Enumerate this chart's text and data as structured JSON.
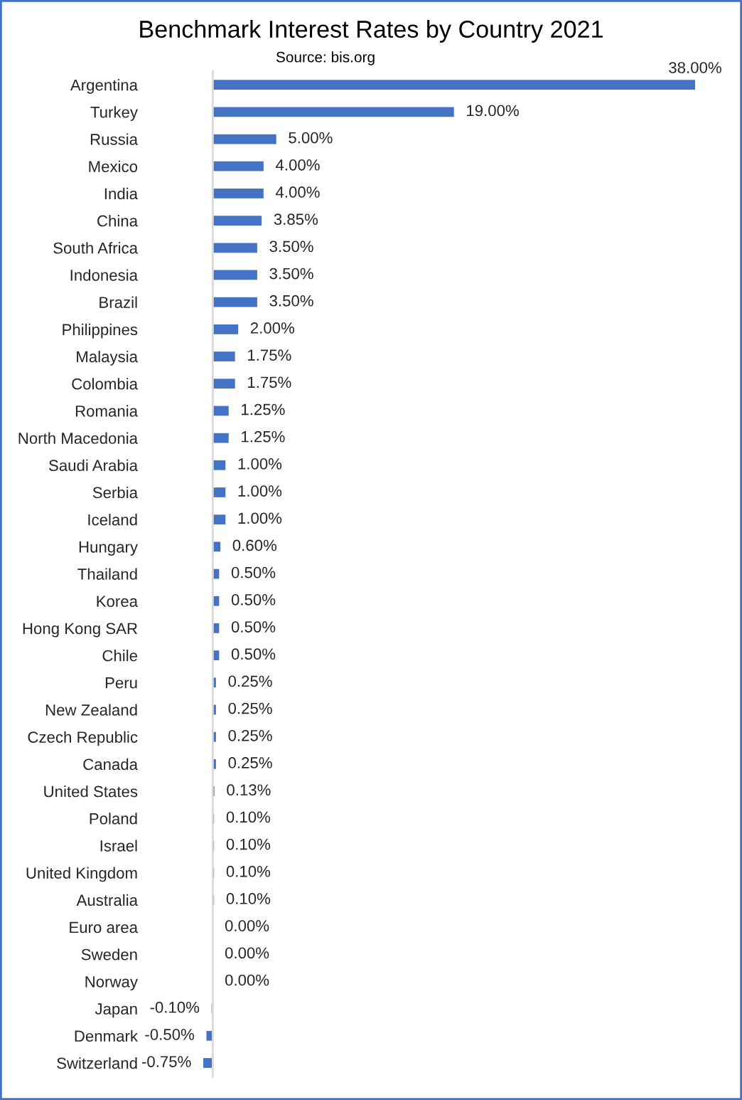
{
  "chart_data": {
    "type": "bar",
    "orientation": "horizontal",
    "title": "Benchmark Interest Rates by Country 2021",
    "subtitle": "Source: bis.org",
    "categories": [
      "Argentina",
      "Turkey",
      "Russia",
      "Mexico",
      "India",
      "China",
      "South Africa",
      "Indonesia",
      "Brazil",
      "Philippines",
      "Malaysia",
      "Colombia",
      "Romania",
      "North Macedonia",
      "Saudi Arabia",
      "Serbia",
      "Iceland",
      "Hungary",
      "Thailand",
      "Korea",
      "Hong Kong SAR",
      "Chile",
      "Peru",
      "New Zealand",
      "Czech Republic",
      "Canada",
      "United States",
      "Poland",
      "Israel",
      "United Kingdom",
      "Australia",
      "Euro area",
      "Sweden",
      "Norway",
      "Japan",
      "Denmark",
      "Switzerland"
    ],
    "values": [
      38,
      19,
      5,
      4,
      4,
      3.85,
      3.5,
      3.5,
      3.5,
      2,
      1.75,
      1.75,
      1.25,
      1.25,
      1,
      1,
      1,
      0.6,
      0.5,
      0.5,
      0.5,
      0.5,
      0.25,
      0.25,
      0.25,
      0.25,
      0.13,
      0.1,
      0.1,
      0.1,
      0.1,
      0,
      0,
      0,
      -0.1,
      -0.5,
      -0.75
    ],
    "value_labels": [
      "38.00%",
      "19.00%",
      "5.00%",
      "4.00%",
      "4.00%",
      "3.85%",
      "3.50%",
      "3.50%",
      "3.50%",
      "2.00%",
      "1.75%",
      "1.75%",
      "1.25%",
      "1.25%",
      "1.00%",
      "1.00%",
      "1.00%",
      "0.60%",
      "0.50%",
      "0.50%",
      "0.50%",
      "0.50%",
      "0.25%",
      "0.25%",
      "0.25%",
      "0.25%",
      "0.13%",
      "0.10%",
      "0.10%",
      "0.10%",
      "0.10%",
      "0.00%",
      "0.00%",
      "0.00%",
      "-0.10%",
      "-0.50%",
      "-0.75%"
    ],
    "color": "#4472c4",
    "tick_labels": "y"
  }
}
